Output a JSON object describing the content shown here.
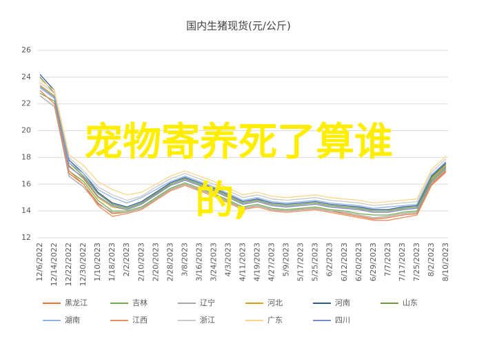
{
  "chart_data": {
    "type": "line",
    "title": "国内生猪现货(元/公斤)",
    "categories": [
      "12/6/2022",
      "12/14/2022",
      "12/22/2022",
      "12/30/2022",
      "1/10/2023",
      "1/18/2023",
      "2/2/2023",
      "2/10/2023",
      "2/20/2023",
      "2/28/2023",
      "3/8/2023",
      "3/16/2023",
      "3/24/2023",
      "4/3/2023",
      "4/11/2023",
      "4/19/2023",
      "4/27/2023",
      "5/9/2023",
      "5/17/2023",
      "5/25/2023",
      "6/2/2023",
      "6/12/2023",
      "6/20/2023",
      "6/29/2023",
      "7/7/2023",
      "7/17/2023",
      "7/25/2023",
      "8/2/2023",
      "8/10/2023"
    ],
    "ylim": [
      12,
      26
    ],
    "yticks": [
      12,
      14,
      16,
      18,
      20,
      22,
      24,
      26
    ],
    "grid": true,
    "series": [
      {
        "name": "黑龙江",
        "color": "#e4703a",
        "values": [
          23.0,
          22.0,
          16.8,
          16.0,
          14.6,
          13.8,
          13.9,
          14.2,
          14.9,
          15.6,
          16.0,
          15.6,
          15.2,
          14.7,
          14.2,
          14.4,
          14.1,
          14.0,
          14.1,
          14.2,
          14.0,
          13.8,
          13.6,
          13.4,
          13.5,
          13.7,
          13.8,
          16.0,
          17.0
        ]
      },
      {
        "name": "吉林",
        "color": "#70ad47",
        "values": [
          22.8,
          22.2,
          17.0,
          16.2,
          14.8,
          14.0,
          14.0,
          14.3,
          15.0,
          15.7,
          16.1,
          15.7,
          15.3,
          14.8,
          14.3,
          14.5,
          14.2,
          14.1,
          14.2,
          14.3,
          14.1,
          14.0,
          13.8,
          13.7,
          13.7,
          13.9,
          14.0,
          16.2,
          17.2
        ]
      },
      {
        "name": "辽宁",
        "color": "#a5a5a5",
        "values": [
          22.6,
          21.8,
          16.6,
          15.8,
          14.5,
          13.9,
          13.9,
          14.2,
          14.9,
          15.6,
          16.0,
          15.6,
          15.2,
          14.7,
          14.2,
          14.4,
          14.1,
          14.0,
          14.1,
          14.2,
          14.0,
          13.9,
          13.7,
          13.5,
          13.6,
          13.8,
          13.9,
          16.1,
          17.1
        ]
      },
      {
        "name": "河北",
        "color": "#d4a017",
        "values": [
          23.4,
          22.6,
          17.4,
          16.4,
          15.0,
          14.3,
          14.1,
          14.5,
          15.2,
          15.9,
          16.3,
          15.9,
          15.5,
          15.0,
          14.5,
          14.7,
          14.4,
          14.3,
          14.4,
          14.5,
          14.3,
          14.2,
          14.1,
          13.9,
          13.9,
          14.1,
          14.2,
          16.4,
          17.4
        ]
      },
      {
        "name": "河南",
        "color": "#2f5597",
        "values": [
          24.2,
          23.0,
          17.8,
          16.8,
          15.4,
          14.6,
          14.3,
          14.7,
          15.4,
          16.1,
          16.5,
          16.1,
          15.7,
          15.2,
          14.7,
          14.9,
          14.6,
          14.5,
          14.6,
          14.7,
          14.5,
          14.4,
          14.3,
          14.1,
          14.1,
          14.3,
          14.4,
          16.6,
          17.6
        ]
      },
      {
        "name": "山东",
        "color": "#6b9a3a",
        "values": [
          24.0,
          22.8,
          17.6,
          16.6,
          15.3,
          14.5,
          14.2,
          14.6,
          15.3,
          16.0,
          16.4,
          16.0,
          15.6,
          15.1,
          14.6,
          14.8,
          14.5,
          14.4,
          14.5,
          14.6,
          14.4,
          14.3,
          14.2,
          14.0,
          14.0,
          14.2,
          14.3,
          16.5,
          17.5
        ]
      },
      {
        "name": "湖南",
        "color": "#8fb4e3",
        "values": [
          23.2,
          22.4,
          17.6,
          16.8,
          15.6,
          15.0,
          14.6,
          15.0,
          15.6,
          16.2,
          16.6,
          16.2,
          15.8,
          15.3,
          14.8,
          15.0,
          14.7,
          14.6,
          14.7,
          14.8,
          14.6,
          14.5,
          14.4,
          14.2,
          14.3,
          14.4,
          14.5,
          16.7,
          17.7
        ]
      },
      {
        "name": "江西",
        "color": "#f08c5a",
        "values": [
          23.0,
          22.0,
          17.0,
          16.0,
          14.4,
          13.6,
          13.8,
          14.1,
          14.8,
          15.5,
          15.9,
          15.5,
          15.1,
          14.6,
          14.1,
          14.3,
          14.0,
          13.9,
          14.0,
          14.1,
          13.9,
          13.7,
          13.5,
          13.3,
          13.3,
          13.5,
          13.7,
          15.9,
          16.9
        ]
      },
      {
        "name": "浙江",
        "color": "#c9c9c9",
        "values": [
          23.6,
          22.8,
          18.0,
          17.0,
          15.8,
          15.2,
          14.8,
          15.1,
          15.8,
          16.4,
          16.8,
          16.4,
          16.0,
          15.5,
          15.0,
          15.2,
          14.9,
          14.8,
          14.9,
          15.0,
          14.8,
          14.7,
          14.6,
          14.4,
          14.5,
          14.6,
          14.7,
          16.9,
          17.9
        ]
      },
      {
        "name": "广东",
        "color": "#ffd48a",
        "values": [
          23.8,
          23.0,
          18.2,
          17.4,
          16.2,
          15.6,
          15.2,
          15.4,
          16.0,
          16.6,
          17.0,
          16.6,
          16.2,
          15.7,
          15.2,
          15.4,
          15.1,
          15.0,
          15.1,
          15.2,
          15.0,
          14.9,
          14.8,
          14.6,
          14.7,
          14.8,
          14.9,
          17.1,
          18.1
        ]
      },
      {
        "name": "四川",
        "color": "#7b88d0",
        "values": [
          23.3,
          22.5,
          17.3,
          16.5,
          15.1,
          14.4,
          14.1,
          14.5,
          15.2,
          15.9,
          16.3,
          15.9,
          15.5,
          15.0,
          14.5,
          14.7,
          14.4,
          14.3,
          14.4,
          14.5,
          14.3,
          14.2,
          14.1,
          13.9,
          13.9,
          14.1,
          14.2,
          16.3,
          17.3
        ]
      }
    ]
  },
  "overlay_text": [
    "宠物寄养死了算谁",
    "的,"
  ]
}
